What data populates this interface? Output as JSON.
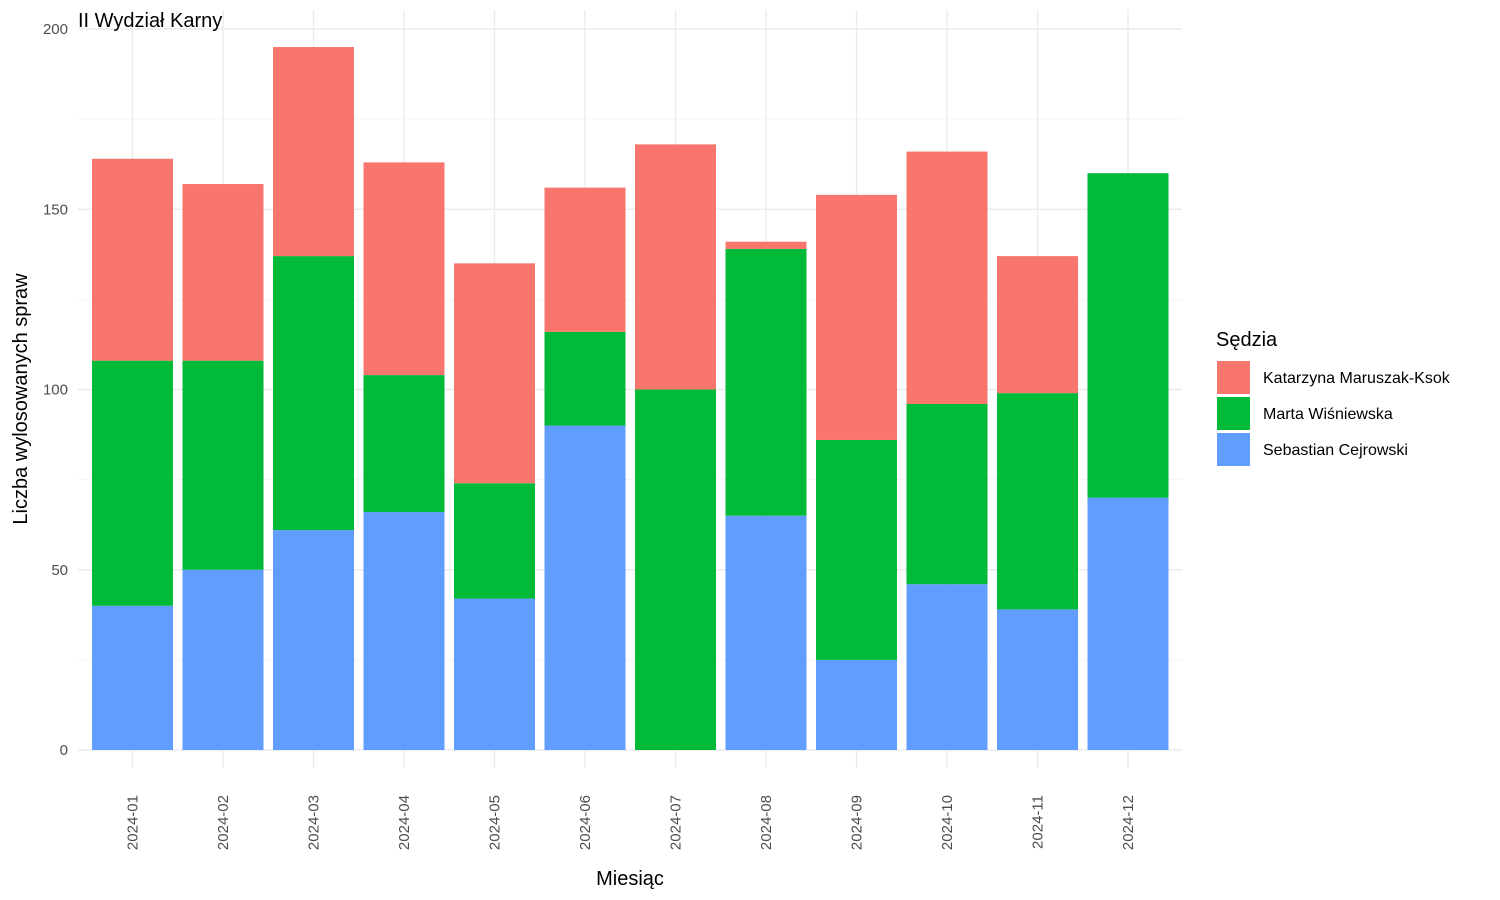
{
  "chart_data": {
    "type": "bar",
    "stacked": true,
    "title": "II Wydział Karny",
    "xlabel": "Miesiąc",
    "ylabel": "Liczba wylosowanych spraw",
    "ylim": [
      0,
      200
    ],
    "yticks": [
      0,
      50,
      100,
      150,
      200
    ],
    "grid": true,
    "legend": {
      "title": "Sędzia",
      "position": "right"
    },
    "categories": [
      "2024-01",
      "2024-02",
      "2024-03",
      "2024-04",
      "2024-05",
      "2024-06",
      "2024-07",
      "2024-08",
      "2024-09",
      "2024-10",
      "2024-11",
      "2024-12"
    ],
    "series": [
      {
        "name": "Sebastian Cejrowski",
        "color": "#619CFF",
        "values": [
          40,
          50,
          61,
          66,
          42,
          90,
          0,
          65,
          25,
          46,
          39,
          70
        ]
      },
      {
        "name": "Marta Wiśniewska",
        "color": "#00BA38",
        "values": [
          68,
          58,
          76,
          38,
          32,
          26,
          100,
          74,
          61,
          50,
          60,
          90
        ]
      },
      {
        "name": "Katarzyna Maruszak-Ksok",
        "color": "#F8766D",
        "values": [
          56,
          49,
          58,
          59,
          61,
          40,
          68,
          2,
          68,
          70,
          38,
          0
        ]
      }
    ],
    "legend_order": [
      "Katarzyna Maruszak-Ksok",
      "Marta Wiśniewska",
      "Sebastian Cejrowski"
    ]
  }
}
